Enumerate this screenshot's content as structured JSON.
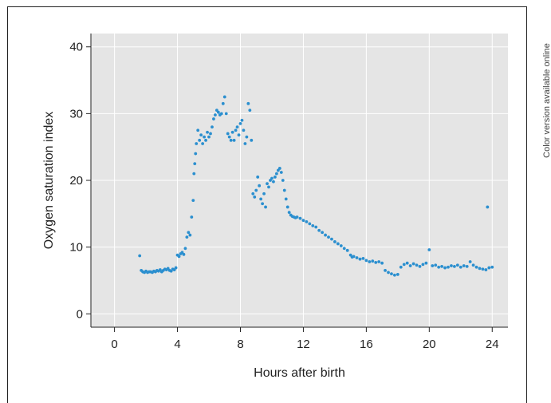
{
  "side_note": "Color version available online",
  "chart_data": {
    "type": "scatter",
    "title": "",
    "xlabel": "Hours after birth",
    "ylabel": "Oxygen saturation index",
    "xlim": [
      -1.5,
      25
    ],
    "ylim": [
      -2,
      42
    ],
    "xticks": [
      0,
      4,
      8,
      12,
      16,
      20,
      24
    ],
    "yticks": [
      0,
      10,
      20,
      30,
      40
    ],
    "grid": true,
    "legend": "none",
    "point_color": "#2b8fcf",
    "background_color": "#e5e5e5",
    "series": [
      {
        "x": [
          1.6,
          1.7,
          1.8,
          1.9,
          2.0,
          2.1,
          2.2,
          2.3,
          2.4,
          2.5,
          2.6,
          2.7,
          2.8,
          2.9,
          3.0,
          3.1,
          3.2,
          3.3,
          3.4,
          3.5,
          3.6,
          3.7,
          3.8,
          3.9,
          4.0,
          4.1,
          4.2,
          4.3,
          4.4,
          4.5,
          4.6,
          4.7,
          4.8,
          4.9,
          5.0,
          5.05,
          5.1,
          5.15,
          5.2,
          5.3,
          5.4,
          5.5,
          5.6,
          5.7,
          5.8,
          5.9,
          6.0,
          6.1,
          6.2,
          6.3,
          6.4,
          6.5,
          6.6,
          6.7,
          6.8,
          6.9,
          7.0,
          7.1,
          7.2,
          7.3,
          7.4,
          7.5,
          7.6,
          7.7,
          7.8,
          7.9,
          8.0,
          8.1,
          8.2,
          8.3,
          8.4,
          8.5,
          8.6,
          8.7,
          8.8,
          8.9,
          9.0,
          9.1,
          9.2,
          9.3,
          9.4,
          9.5,
          9.6,
          9.7,
          9.8,
          9.9,
          10.0,
          10.1,
          10.2,
          10.3,
          10.4,
          10.5,
          10.6,
          10.7,
          10.8,
          10.9,
          11.0,
          11.1,
          11.2,
          11.3,
          11.4,
          11.5,
          11.6,
          11.8,
          12.0,
          12.2,
          12.4,
          12.6,
          12.8,
          13.0,
          13.2,
          13.4,
          13.6,
          13.8,
          14.0,
          14.2,
          14.4,
          14.6,
          14.8,
          15.0,
          15.1,
          15.2,
          15.4,
          15.6,
          15.8,
          16.0,
          16.2,
          16.4,
          16.6,
          16.8,
          17.0,
          17.2,
          17.4,
          17.6,
          17.8,
          18.0,
          18.2,
          18.4,
          18.6,
          18.8,
          19.0,
          19.2,
          19.4,
          19.6,
          19.8,
          20.0,
          20.2,
          20.4,
          20.6,
          20.8,
          21.0,
          21.2,
          21.4,
          21.6,
          21.8,
          22.0,
          22.2,
          22.4,
          22.6,
          22.8,
          23.0,
          23.2,
          23.4,
          23.6,
          23.8,
          24.0,
          23.7
        ],
        "y": [
          8.7,
          6.5,
          6.3,
          6.2,
          6.4,
          6.2,
          6.3,
          6.3,
          6.2,
          6.4,
          6.3,
          6.5,
          6.4,
          6.6,
          6.3,
          6.5,
          6.7,
          6.6,
          6.8,
          6.5,
          6.4,
          6.7,
          6.6,
          6.9,
          8.8,
          8.6,
          9.0,
          9.2,
          8.9,
          9.8,
          11.5,
          12.2,
          11.8,
          14.5,
          17.0,
          21.0,
          22.5,
          24.0,
          25.5,
          27.5,
          26.0,
          26.8,
          25.5,
          26.5,
          26.0,
          27.2,
          26.5,
          27.0,
          28.0,
          29.2,
          29.8,
          30.5,
          30.2,
          29.8,
          30.0,
          31.5,
          32.5,
          30.0,
          27.0,
          26.5,
          26.0,
          27.2,
          26.0,
          27.5,
          28.0,
          26.8,
          28.5,
          29.0,
          27.5,
          25.5,
          26.5,
          31.5,
          30.5,
          26.0,
          18.0,
          17.5,
          18.5,
          20.5,
          19.2,
          17.2,
          16.5,
          18.0,
          16.0,
          19.5,
          19.0,
          20.0,
          20.3,
          19.8,
          20.5,
          21.0,
          21.5,
          21.8,
          21.2,
          20.0,
          18.5,
          17.2,
          16.0,
          15.2,
          14.8,
          14.6,
          14.5,
          14.4,
          14.5,
          14.3,
          14.0,
          13.8,
          13.5,
          13.2,
          13.0,
          12.5,
          12.2,
          11.8,
          11.5,
          11.2,
          10.8,
          10.5,
          10.2,
          9.8,
          9.5,
          8.8,
          8.5,
          8.6,
          8.4,
          8.2,
          8.3,
          8.0,
          7.8,
          7.9,
          7.7,
          7.8,
          7.6,
          6.5,
          6.2,
          6.0,
          5.8,
          5.9,
          7.0,
          7.4,
          7.6,
          7.2,
          7.5,
          7.3,
          7.1,
          7.4,
          7.6,
          9.6,
          7.2,
          7.3,
          7.0,
          7.1,
          6.9,
          7.0,
          7.2,
          7.1,
          7.3,
          7.0,
          7.2,
          7.1,
          7.8,
          7.3,
          7.0,
          6.8,
          6.7,
          6.6,
          6.9,
          7.0,
          16.0
        ]
      }
    ]
  }
}
